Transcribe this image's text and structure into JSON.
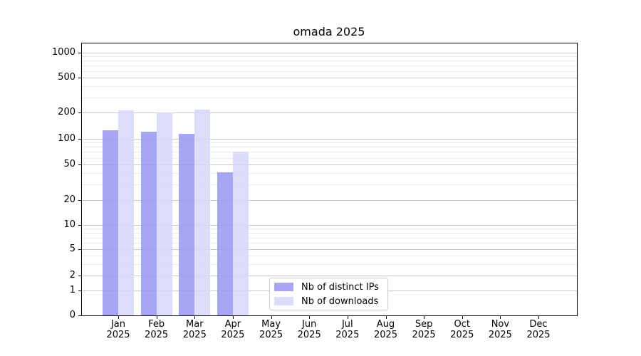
{
  "title": "omada 2025",
  "chart_data": {
    "type": "bar",
    "title": "omada 2025",
    "categories": [
      "Jan",
      "Feb",
      "Mar",
      "Apr",
      "May",
      "Jun",
      "Jul",
      "Aug",
      "Sep",
      "Oct",
      "Nov",
      "Dec"
    ],
    "year": "2025",
    "series": [
      {
        "key": "ips",
        "name": "Nb of distinct IPs",
        "color": "#9696f0",
        "values": [
          126,
          120,
          114,
          41,
          null,
          null,
          null,
          null,
          null,
          null,
          null,
          null
        ]
      },
      {
        "key": "downloads",
        "name": "Nb of downloads",
        "color": "#d6d6fa",
        "values": [
          213,
          200,
          217,
          70,
          null,
          null,
          null,
          null,
          null,
          null,
          null,
          null
        ]
      }
    ],
    "bar_alpha": 0.85,
    "y_ticks": [
      0,
      1,
      2,
      5,
      10,
      20,
      50,
      100,
      200,
      500,
      1000
    ],
    "ylim": [
      0,
      1300
    ],
    "yscale": "log-like",
    "xlabel": "",
    "ylabel": "",
    "grid": "horizontal major and minor",
    "legend_position": "lower center",
    "grid_major_color": "#c9c9c9",
    "grid_minor_color": "#ebebeb",
    "axis_color": "#000000"
  }
}
